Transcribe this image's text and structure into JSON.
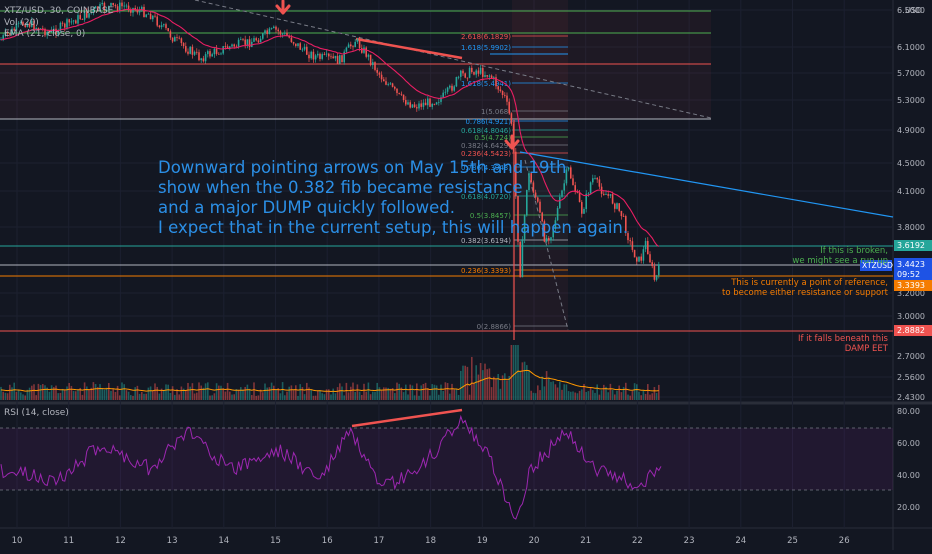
{
  "header": {
    "symbol_line": "XTZ/USD, 30, COINBASE",
    "vol_line": "Vol (20)",
    "ema_line": "EMA (21, close, 0)",
    "rsi_line": "RSI (14, close)",
    "currency": "USD"
  },
  "price_axis": {
    "ticks": [
      "6.5000",
      "6.1000",
      "5.7000",
      "5.3000",
      "4.9000",
      "4.5000",
      "4.1000",
      "3.8000",
      "3.2000",
      "3.0000",
      "2.7000",
      "2.5600",
      "2.4300"
    ]
  },
  "price_tags": [
    {
      "label": "3.6192",
      "color": "#26a69a"
    },
    {
      "label": "XTZUSD",
      "color": "#1e53e5"
    },
    {
      "label": "3.4423",
      "color": "#1e53e5"
    },
    {
      "label": "09:52",
      "color": "#1e53e5"
    },
    {
      "label": "3.3393",
      "color": "#f57c00"
    },
    {
      "label": "2.8882",
      "color": "#ef5350"
    }
  ],
  "rsi_axis": {
    "ticks": [
      "80.00",
      "60.00",
      "40.00",
      "20.00"
    ]
  },
  "time_axis": {
    "ticks": [
      "10",
      "11",
      "12",
      "13",
      "14",
      "15",
      "16",
      "17",
      "18",
      "19",
      "20",
      "21",
      "22",
      "23",
      "24",
      "25",
      "26"
    ]
  },
  "fib_upper": [
    {
      "label": "2.618(6.1829)",
      "color": "#ef5350"
    },
    {
      "label": "1.618(5.9902)",
      "color": "#2196f3"
    },
    {
      "label": "1.618(5.4941)",
      "color": "#2196f3"
    },
    {
      "label": "1(5.068)",
      "color": "#787b86"
    },
    {
      "label": "0.786(4.921)",
      "color": "#2196f3"
    },
    {
      "label": "0.618(4.8046)",
      "color": "#26a69a"
    },
    {
      "label": "0.5(4.724)",
      "color": "#4caf50"
    },
    {
      "label": "0.382(4.6429)",
      "color": "#787b86"
    },
    {
      "label": "0.236(4.5423)",
      "color": "#ef5350"
    }
  ],
  "fib_lower": [
    {
      "label": "0.786(4.3943)",
      "color": "#2196f3"
    },
    {
      "label": "0.618(4.0720)",
      "color": "#26a69a"
    },
    {
      "label": "0.5(3.8457)",
      "color": "#4caf50"
    },
    {
      "label": "0.382(3.6194)",
      "color": "#b2b5be"
    },
    {
      "label": "0.236(3.3393)",
      "color": "#f57c00"
    },
    {
      "label": "0(2.8866)",
      "color": "#787b86"
    }
  ],
  "annotation": {
    "text": "Downward pointing arrows on May 15th and 19th\nshow when the 0.382 fib became resistance\nand a major DUMP quickly followed.\nI expect that in the current setup, this will happen again."
  },
  "notes": {
    "broken": "If this is broken,\nwe might see a run up",
    "reference": "This is currently a point of reference,\nto become either resistance or support",
    "beneath": "If it falls beneath this\nDAMP EET"
  },
  "colors": {
    "background": "#131722",
    "bull": "#26a69a",
    "bear": "#ef5350",
    "ema": "#e91e63",
    "rsi": "#9c27b0",
    "trend": "#2196f3"
  }
}
